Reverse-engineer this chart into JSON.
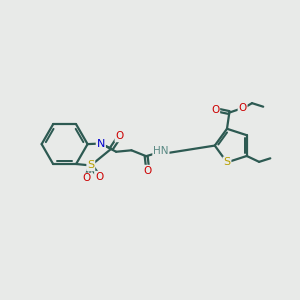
{
  "background_color": "#e8eae8",
  "bond_color": "#2d5a52",
  "S_color": "#b8a000",
  "N_color": "#0000cc",
  "O_color": "#cc0000",
  "H_color": "#5a8a84",
  "line_width": 1.6,
  "figsize": [
    3.0,
    3.0
  ],
  "dpi": 100,
  "xlim": [
    0,
    10
  ],
  "ylim": [
    0,
    10
  ]
}
